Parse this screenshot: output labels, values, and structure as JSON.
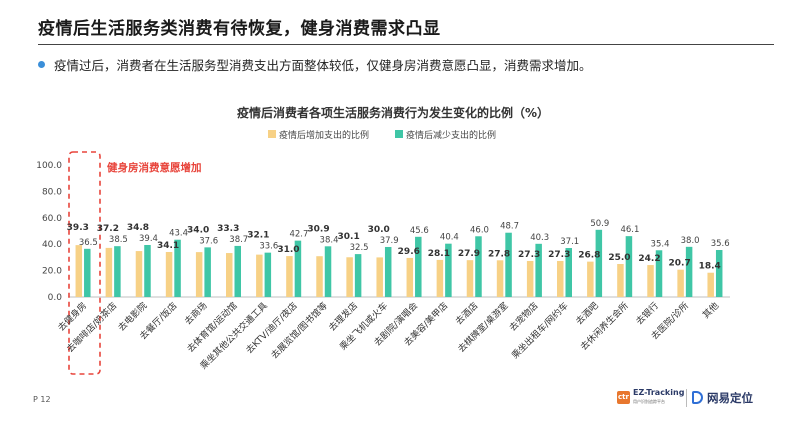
{
  "header": {
    "title": "疫情后生活服务类消费有待恢复，健身消费需求凸显",
    "bullet": "疫情过后，消费者在生活服务型消费支出方面整体较低，仅健身房消费意愿凸显，消费需求增加。"
  },
  "chart_data": {
    "type": "bar",
    "title": "疫情后消费者各项生活服务消费行为发生变化的比例（%）",
    "ylim": [
      0,
      100
    ],
    "yticks": [
      "0.0",
      "20.0",
      "40.0",
      "60.0",
      "80.0",
      "100.0"
    ],
    "grid": false,
    "legend_position": "top",
    "annotation": "健身房消费意愿增加",
    "categories": [
      "去健身房",
      "去咖啡店/奶茶店",
      "去电影院",
      "去餐厅/饭店",
      "去商场",
      "去体育馆/运动馆",
      "乘坐其他公共交通工具",
      "去KTV/迪厅/夜店",
      "去展览馆/图书馆等",
      "去理发店",
      "乘坐飞机或火车",
      "去剧院/演唱会",
      "去美容/美甲店",
      "去酒店",
      "去棋牌室/桌游室",
      "去宠物店",
      "乘坐出租车/网约车",
      "去酒吧",
      "去休闲养生会所",
      "去银行",
      "去医院/诊所",
      "其他"
    ],
    "series": [
      {
        "name": "疫情后增加支出的比例",
        "color": "#f7d186",
        "values": [
          39.3,
          37.2,
          34.8,
          34.1,
          34.0,
          33.3,
          32.1,
          31.0,
          30.9,
          30.1,
          30.0,
          29.6,
          28.1,
          27.9,
          27.8,
          27.3,
          27.3,
          26.8,
          25.0,
          24.2,
          20.7,
          18.4
        ]
      },
      {
        "name": "疫情后减少支出的比例",
        "color": "#3fc6a6",
        "values": [
          36.5,
          38.5,
          39.4,
          43.4,
          37.6,
          38.7,
          33.6,
          42.7,
          38.4,
          32.5,
          37.9,
          45.6,
          40.4,
          46.0,
          48.7,
          40.3,
          37.1,
          50.9,
          46.1,
          35.4,
          38.0,
          35.6
        ]
      }
    ]
  },
  "footer": {
    "page": "P 12",
    "logo_ez_mark": "ctr",
    "logo_ez": "EZ-Tracking",
    "logo_ez_sub": "用户识别追踪平台",
    "logo_wy": "网易定位"
  }
}
